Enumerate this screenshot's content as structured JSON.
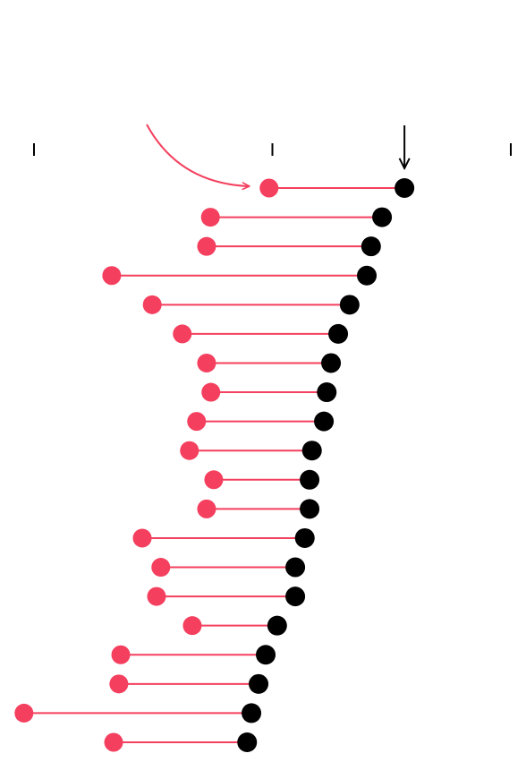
{
  "chart_data": {
    "type": "dumbbell",
    "xlim": [
      0,
      100
    ],
    "xticks": [
      0,
      50,
      100
    ],
    "series": [
      {
        "color": "#f43f5e",
        "values": [
          49.3,
          37.0,
          36.2,
          16.3,
          24.8,
          31.1,
          36.2,
          37.1,
          34.1,
          32.6,
          37.7,
          36.2,
          22.7,
          26.6,
          25.7,
          33.2,
          18.2,
          17.8,
          -2.1,
          16.7
        ]
      },
      {
        "color": "#000000",
        "values": [
          77.7,
          73.0,
          70.7,
          69.8,
          66.2,
          63.8,
          62.3,
          61.4,
          60.8,
          58.3,
          57.8,
          57.8,
          56.8,
          54.8,
          54.8,
          51.0,
          48.6,
          47.1,
          45.6,
          44.7
        ]
      }
    ]
  }
}
